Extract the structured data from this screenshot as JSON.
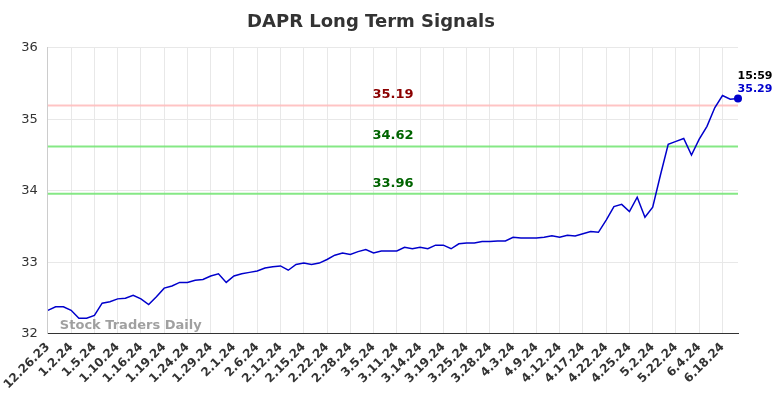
{
  "chart_data": {
    "type": "line",
    "title": "DAPR Long Term Signals",
    "watermark": "Stock Traders Daily",
    "categories": [
      "12.26.23",
      null,
      null,
      "1.2.24",
      null,
      null,
      "1.5.24",
      null,
      null,
      "1.10.24",
      null,
      null,
      "1.16.24",
      null,
      null,
      "1.19.24",
      null,
      null,
      "1.24.24",
      null,
      null,
      "1.29.24",
      null,
      null,
      "2.1.24",
      null,
      null,
      "2.6.24",
      null,
      null,
      "2.12.24",
      null,
      null,
      "2.15.24",
      null,
      null,
      "2.22.24",
      null,
      null,
      "2.28.24",
      null,
      null,
      "3.5.24",
      null,
      null,
      "3.11.24",
      null,
      null,
      "3.14.24",
      null,
      null,
      "3.19.24",
      null,
      null,
      "3.25.24",
      null,
      null,
      "3.28.24",
      null,
      null,
      "4.3.24",
      null,
      null,
      "4.9.24",
      null,
      null,
      "4.12.24",
      null,
      null,
      "4.17.24",
      null,
      null,
      "4.22.24",
      null,
      null,
      "4.25.24",
      null,
      null,
      "5.2.24",
      null,
      null,
      "5.22.24",
      null,
      null,
      "6.4.24",
      null,
      null,
      "6.18.24",
      null,
      null
    ],
    "series": [
      {
        "name": "DAPR",
        "color": "#0000cc",
        "marker": "none",
        "values": [
          32.33,
          32.38,
          32.38,
          32.33,
          32.22,
          32.22,
          32.26,
          32.43,
          32.45,
          32.49,
          32.5,
          32.54,
          32.49,
          32.41,
          32.52,
          32.64,
          32.67,
          32.72,
          32.72,
          32.75,
          32.76,
          32.81,
          32.84,
          32.72,
          32.81,
          32.84,
          32.86,
          32.88,
          32.92,
          32.94,
          32.95,
          32.89,
          32.97,
          32.99,
          32.97,
          32.99,
          33.04,
          33.1,
          33.13,
          33.11,
          33.15,
          33.18,
          33.13,
          33.16,
          33.16,
          33.16,
          33.21,
          33.19,
          33.21,
          33.19,
          33.24,
          33.24,
          33.19,
          33.26,
          33.27,
          33.27,
          33.29,
          33.29,
          33.3,
          33.3,
          33.35,
          33.34,
          33.34,
          33.34,
          33.35,
          33.37,
          33.35,
          33.38,
          33.37,
          33.4,
          33.43,
          33.42,
          33.59,
          33.78,
          33.81,
          33.71,
          33.91,
          33.63,
          33.77,
          34.22,
          34.65,
          34.69,
          34.73,
          34.5,
          34.72,
          34.9,
          35.16,
          35.33,
          35.28,
          35.29
        ]
      }
    ],
    "levels": [
      {
        "value": 35.19,
        "label": "35.19",
        "color": "#8b0000"
      },
      {
        "value": 34.62,
        "label": "34.62",
        "color": "#006400"
      },
      {
        "value": 33.96,
        "label": "33.96",
        "color": "#006400"
      }
    ],
    "last_point": {
      "time": "15:59",
      "value": 35.29,
      "value_label": "35.29"
    },
    "ylim": [
      32,
      36
    ],
    "yticks": [
      32,
      33,
      34,
      35,
      36
    ],
    "grid": true
  }
}
